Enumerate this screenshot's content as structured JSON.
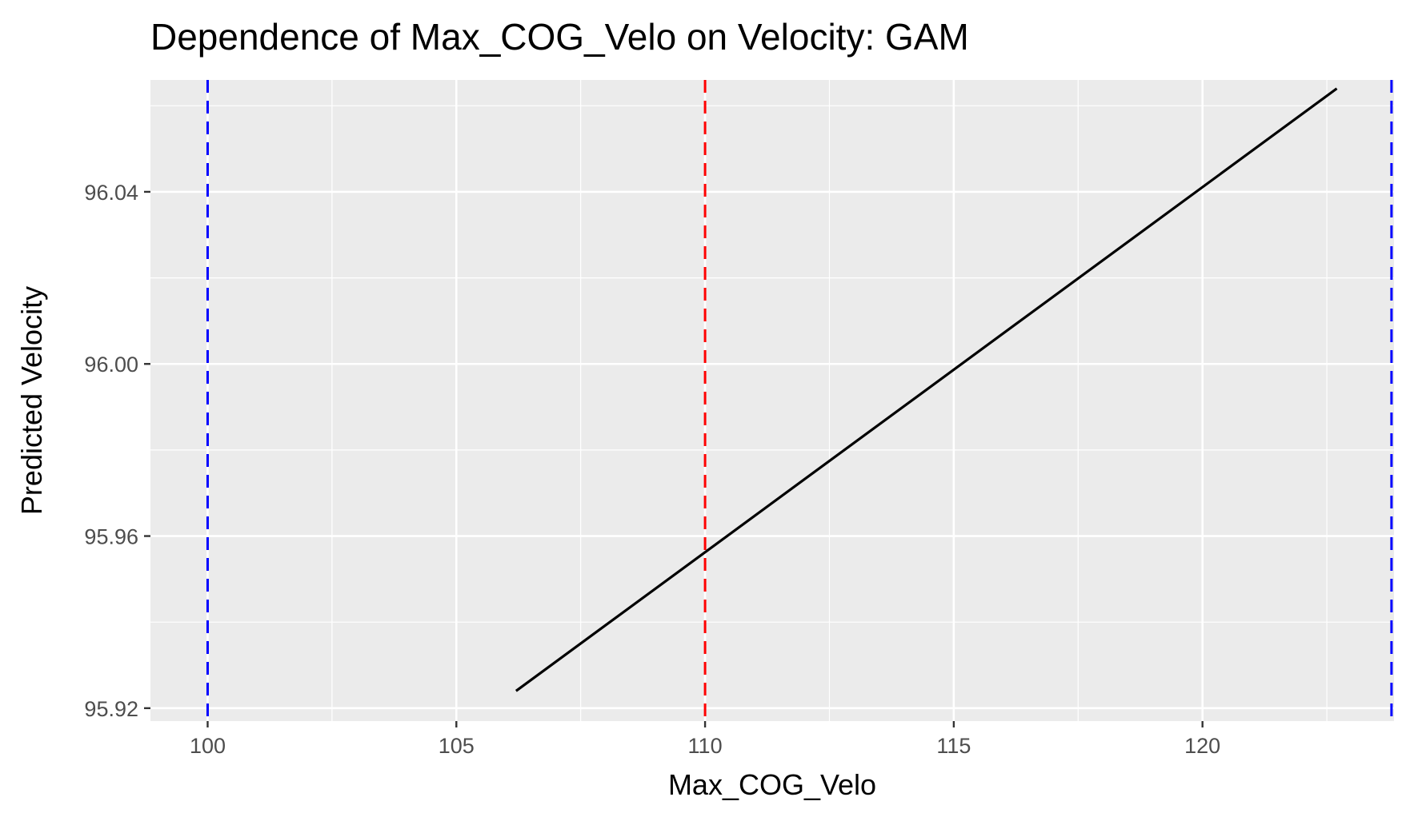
{
  "chart_data": {
    "type": "line",
    "title": "Dependence of Max_COG_Velo on Velocity: GAM",
    "xlabel": "Max_COG_Velo",
    "ylabel": "Predicted Velocity",
    "xlim": [
      98.85,
      123.85
    ],
    "ylim": [
      95.917,
      96.066
    ],
    "x_ticks": [
      100,
      105,
      110,
      115,
      120
    ],
    "x_tick_labels": [
      "100",
      "105",
      "110",
      "115",
      "120"
    ],
    "x_minor_ticks": [
      102.5,
      107.5,
      112.5,
      117.5,
      122.5
    ],
    "y_ticks": [
      95.92,
      95.96,
      96.0,
      96.04
    ],
    "y_tick_labels": [
      "95.92",
      "95.96",
      "96.00",
      "96.04"
    ],
    "y_minor_ticks": [
      95.94,
      95.98,
      96.02,
      96.06
    ],
    "grid": true,
    "series": [
      {
        "color": "#000000",
        "x": [
          106.2,
          122.7
        ],
        "y": [
          95.924,
          96.064
        ]
      }
    ],
    "reference_lines": [
      {
        "x": 100.0,
        "color": "#0000ff",
        "style": "dashed"
      },
      {
        "x": 110.0,
        "color": "#ff0000",
        "style": "dashed"
      },
      {
        "x": 123.8,
        "color": "#0000ff",
        "style": "dashed"
      }
    ],
    "colors": {
      "panel_background": "#ebebeb",
      "grid": "#ffffff",
      "tick_label": "#4d4d4d"
    }
  }
}
